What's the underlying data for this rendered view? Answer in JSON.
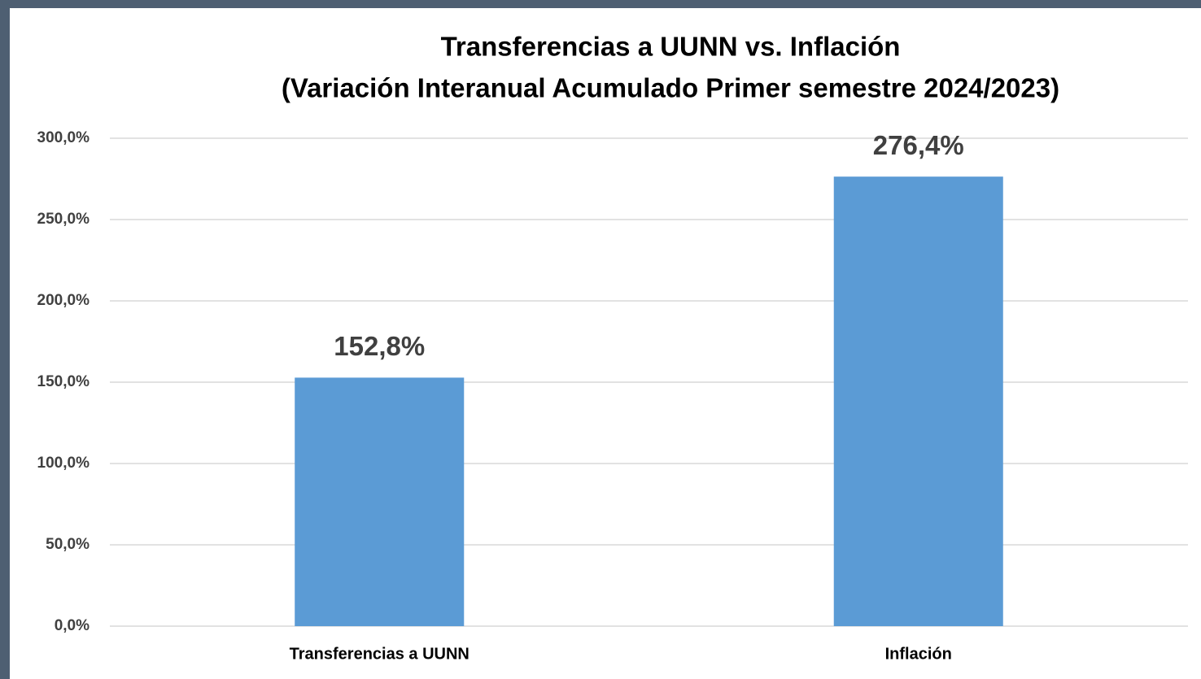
{
  "chart_data": {
    "type": "bar",
    "title": "Transferencias a UUNN  vs. Inflación",
    "subtitle": "(Variación Interanual Acumulado Primer semestre 2024/2023)",
    "categories": [
      "Transferencias a UUNN",
      "Inflación"
    ],
    "values": [
      152.8,
      276.4
    ],
    "value_labels": [
      "152,8%",
      "276,4%"
    ],
    "color": "#5b9bd5",
    "ylim": [
      0,
      300
    ],
    "yticks": [
      {
        "value": 0,
        "label": "0,0%"
      },
      {
        "value": 50,
        "label": "50,0%"
      },
      {
        "value": 100,
        "label": "100,0%"
      },
      {
        "value": 150,
        "label": "150,0%"
      },
      {
        "value": 200,
        "label": "200,0%"
      },
      {
        "value": 250,
        "label": "250,0%"
      },
      {
        "value": 300,
        "label": "300,0%"
      }
    ],
    "grid": true
  }
}
